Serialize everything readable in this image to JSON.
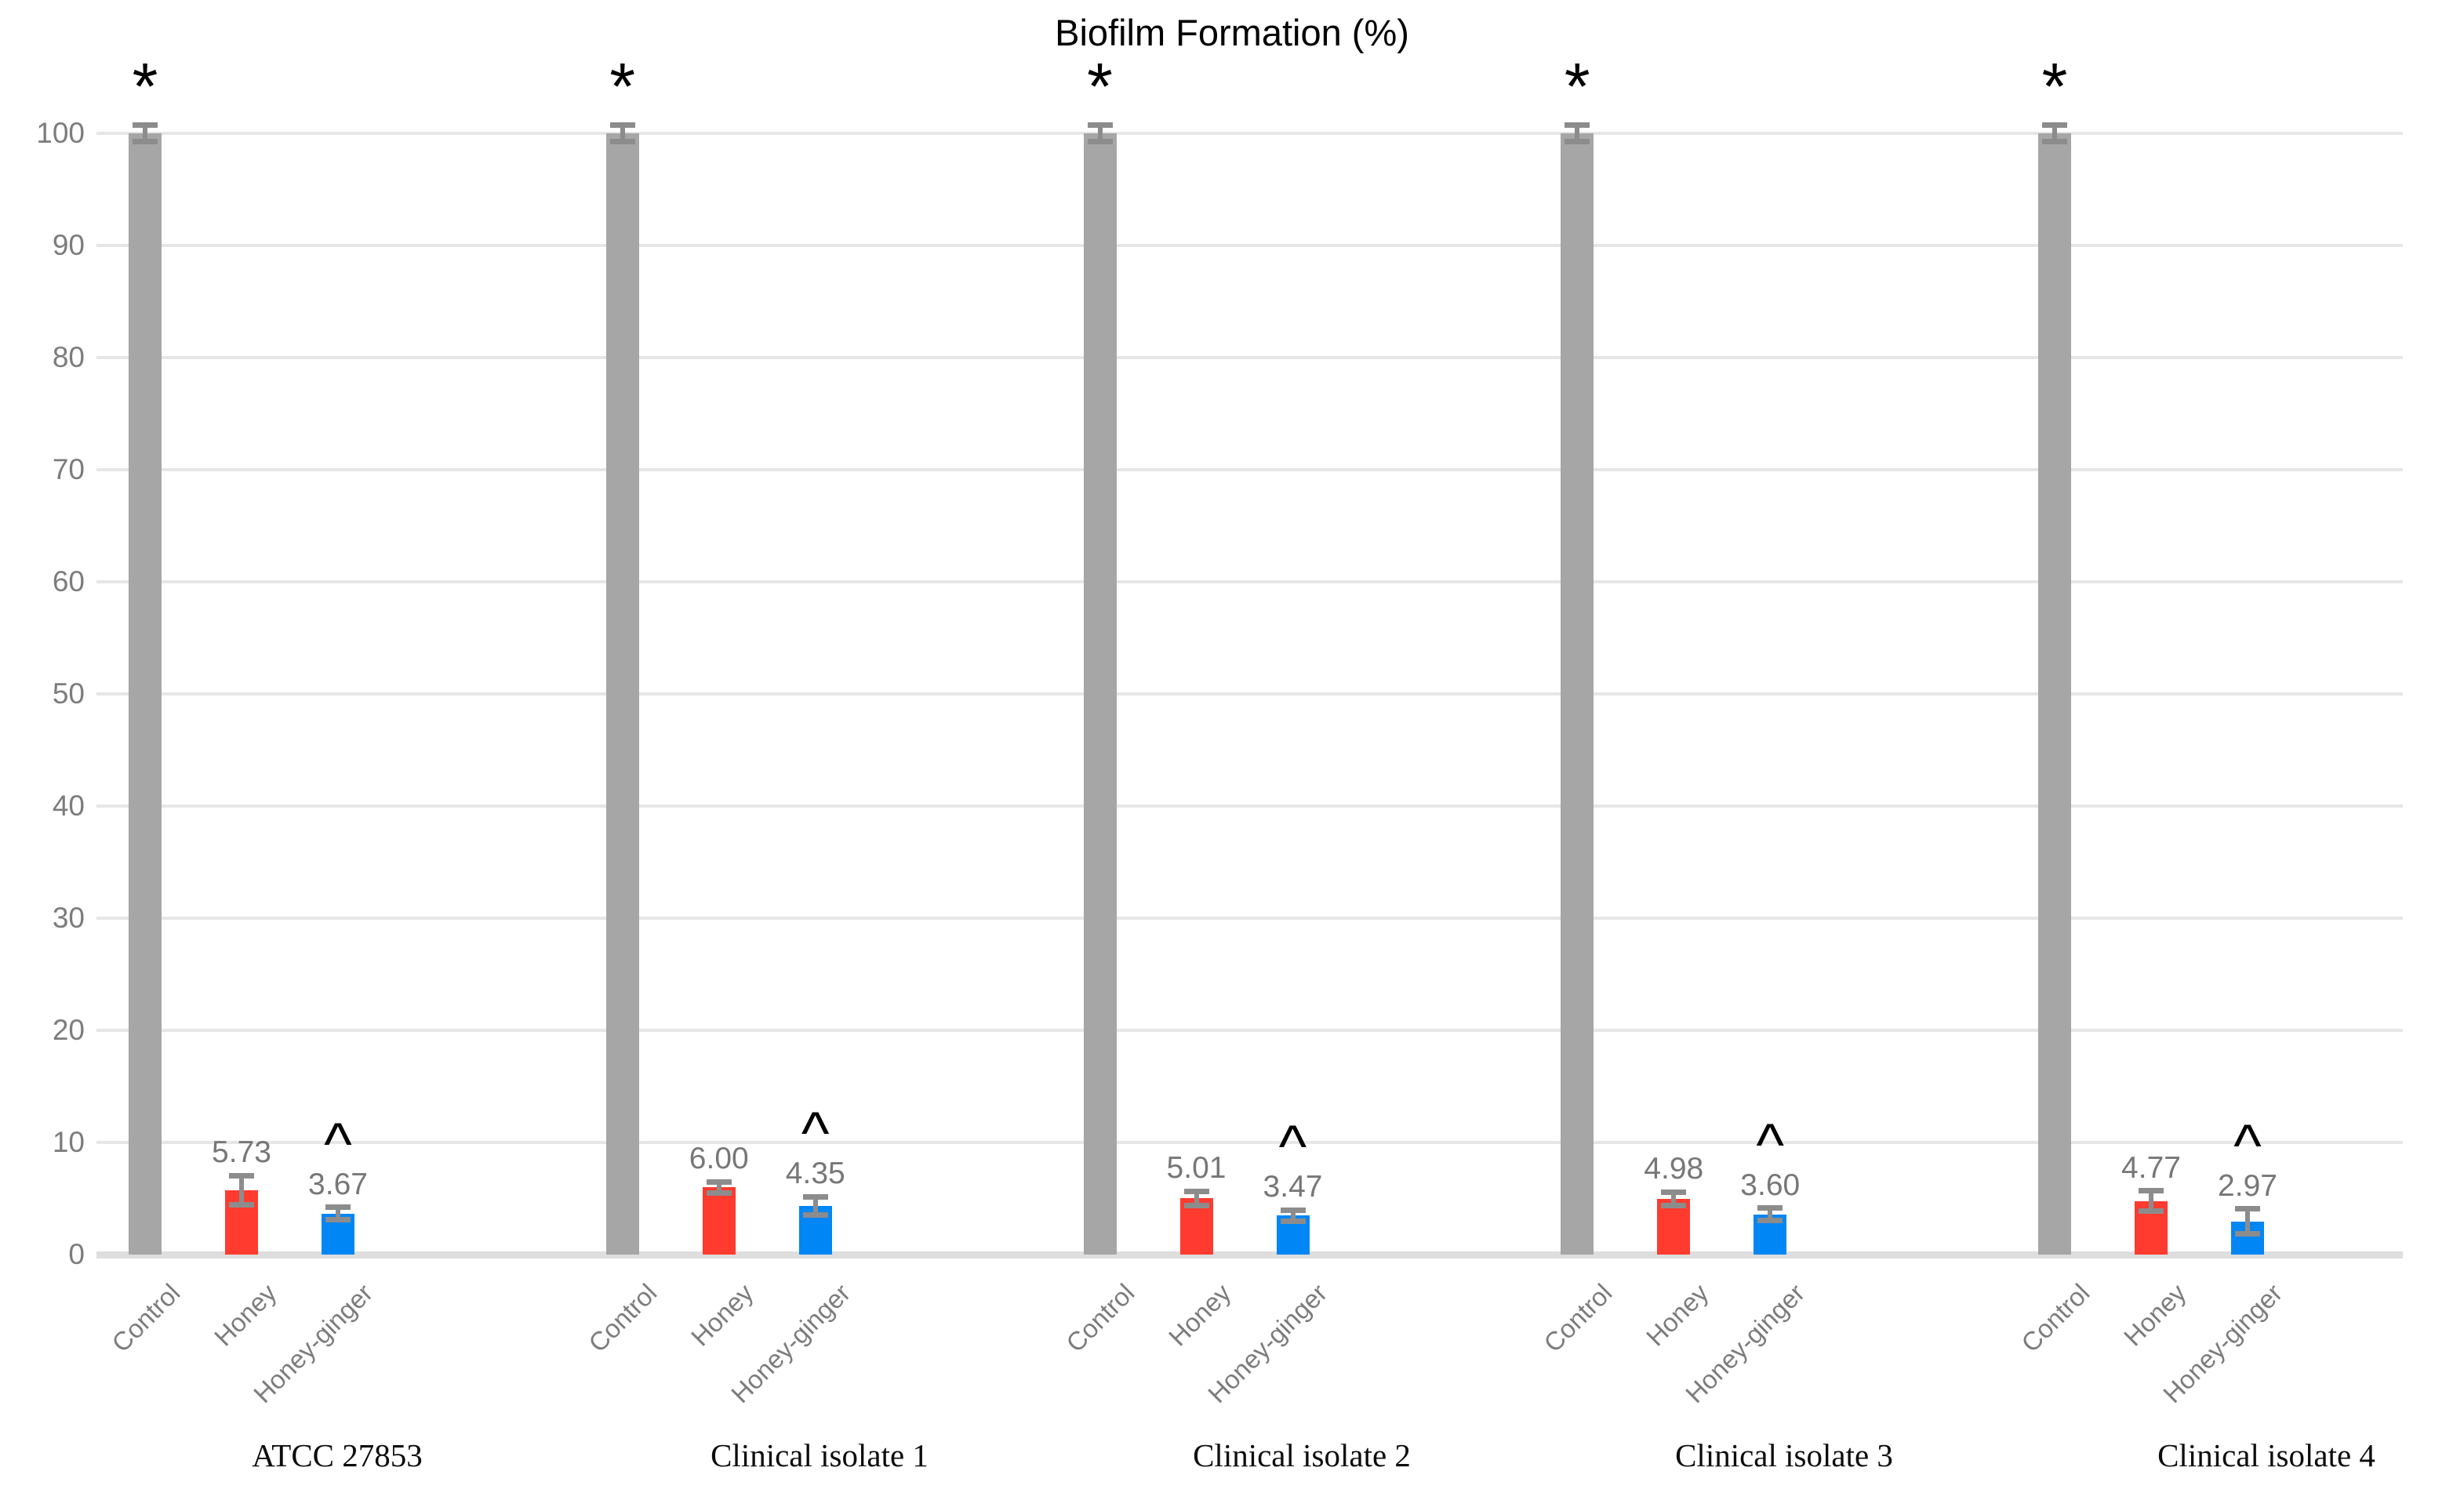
{
  "title": "Biofilm Formation (%)",
  "chart_data": {
    "type": "bar",
    "title": "Biofilm Formation (%)",
    "categories": [
      "ATCC 27853",
      "Clinical isolate 1",
      "Clinical isolate 2",
      "Clinical isolate 3",
      "Clinical isolate 4"
    ],
    "x_tick_labels": [
      "Control",
      "Honey",
      "Honey-ginger"
    ],
    "series": [
      {
        "name": "Control",
        "color": "#a6a6a6",
        "values": [
          100,
          100,
          100,
          100,
          100
        ],
        "errors": [
          0.7,
          0.7,
          0.7,
          0.7,
          0.7
        ],
        "marker": "*",
        "value_labels": [
          "",
          "",
          "",
          "",
          ""
        ]
      },
      {
        "name": "Honey",
        "color": "#ff3b2f",
        "values": [
          5.73,
          6.0,
          5.01,
          4.98,
          4.77
        ],
        "errors": [
          1.3,
          0.5,
          0.65,
          0.6,
          0.9
        ],
        "marker": "",
        "value_labels": [
          "5.73",
          "6.00",
          "5.01",
          "4.98",
          "4.77"
        ]
      },
      {
        "name": "Honey-ginger",
        "color": "#0086f5",
        "values": [
          3.67,
          4.35,
          3.47,
          3.6,
          2.97
        ],
        "errors": [
          0.55,
          0.8,
          0.5,
          0.55,
          1.1
        ],
        "marker": "^",
        "value_labels": [
          "3.67",
          "4.35",
          "3.47",
          "3.60",
          "2.97"
        ]
      }
    ],
    "ylim": [
      0,
      100
    ],
    "ytick_step": 10,
    "grid": true,
    "legend": "none",
    "error_bar_color": "#8c8c8c"
  }
}
